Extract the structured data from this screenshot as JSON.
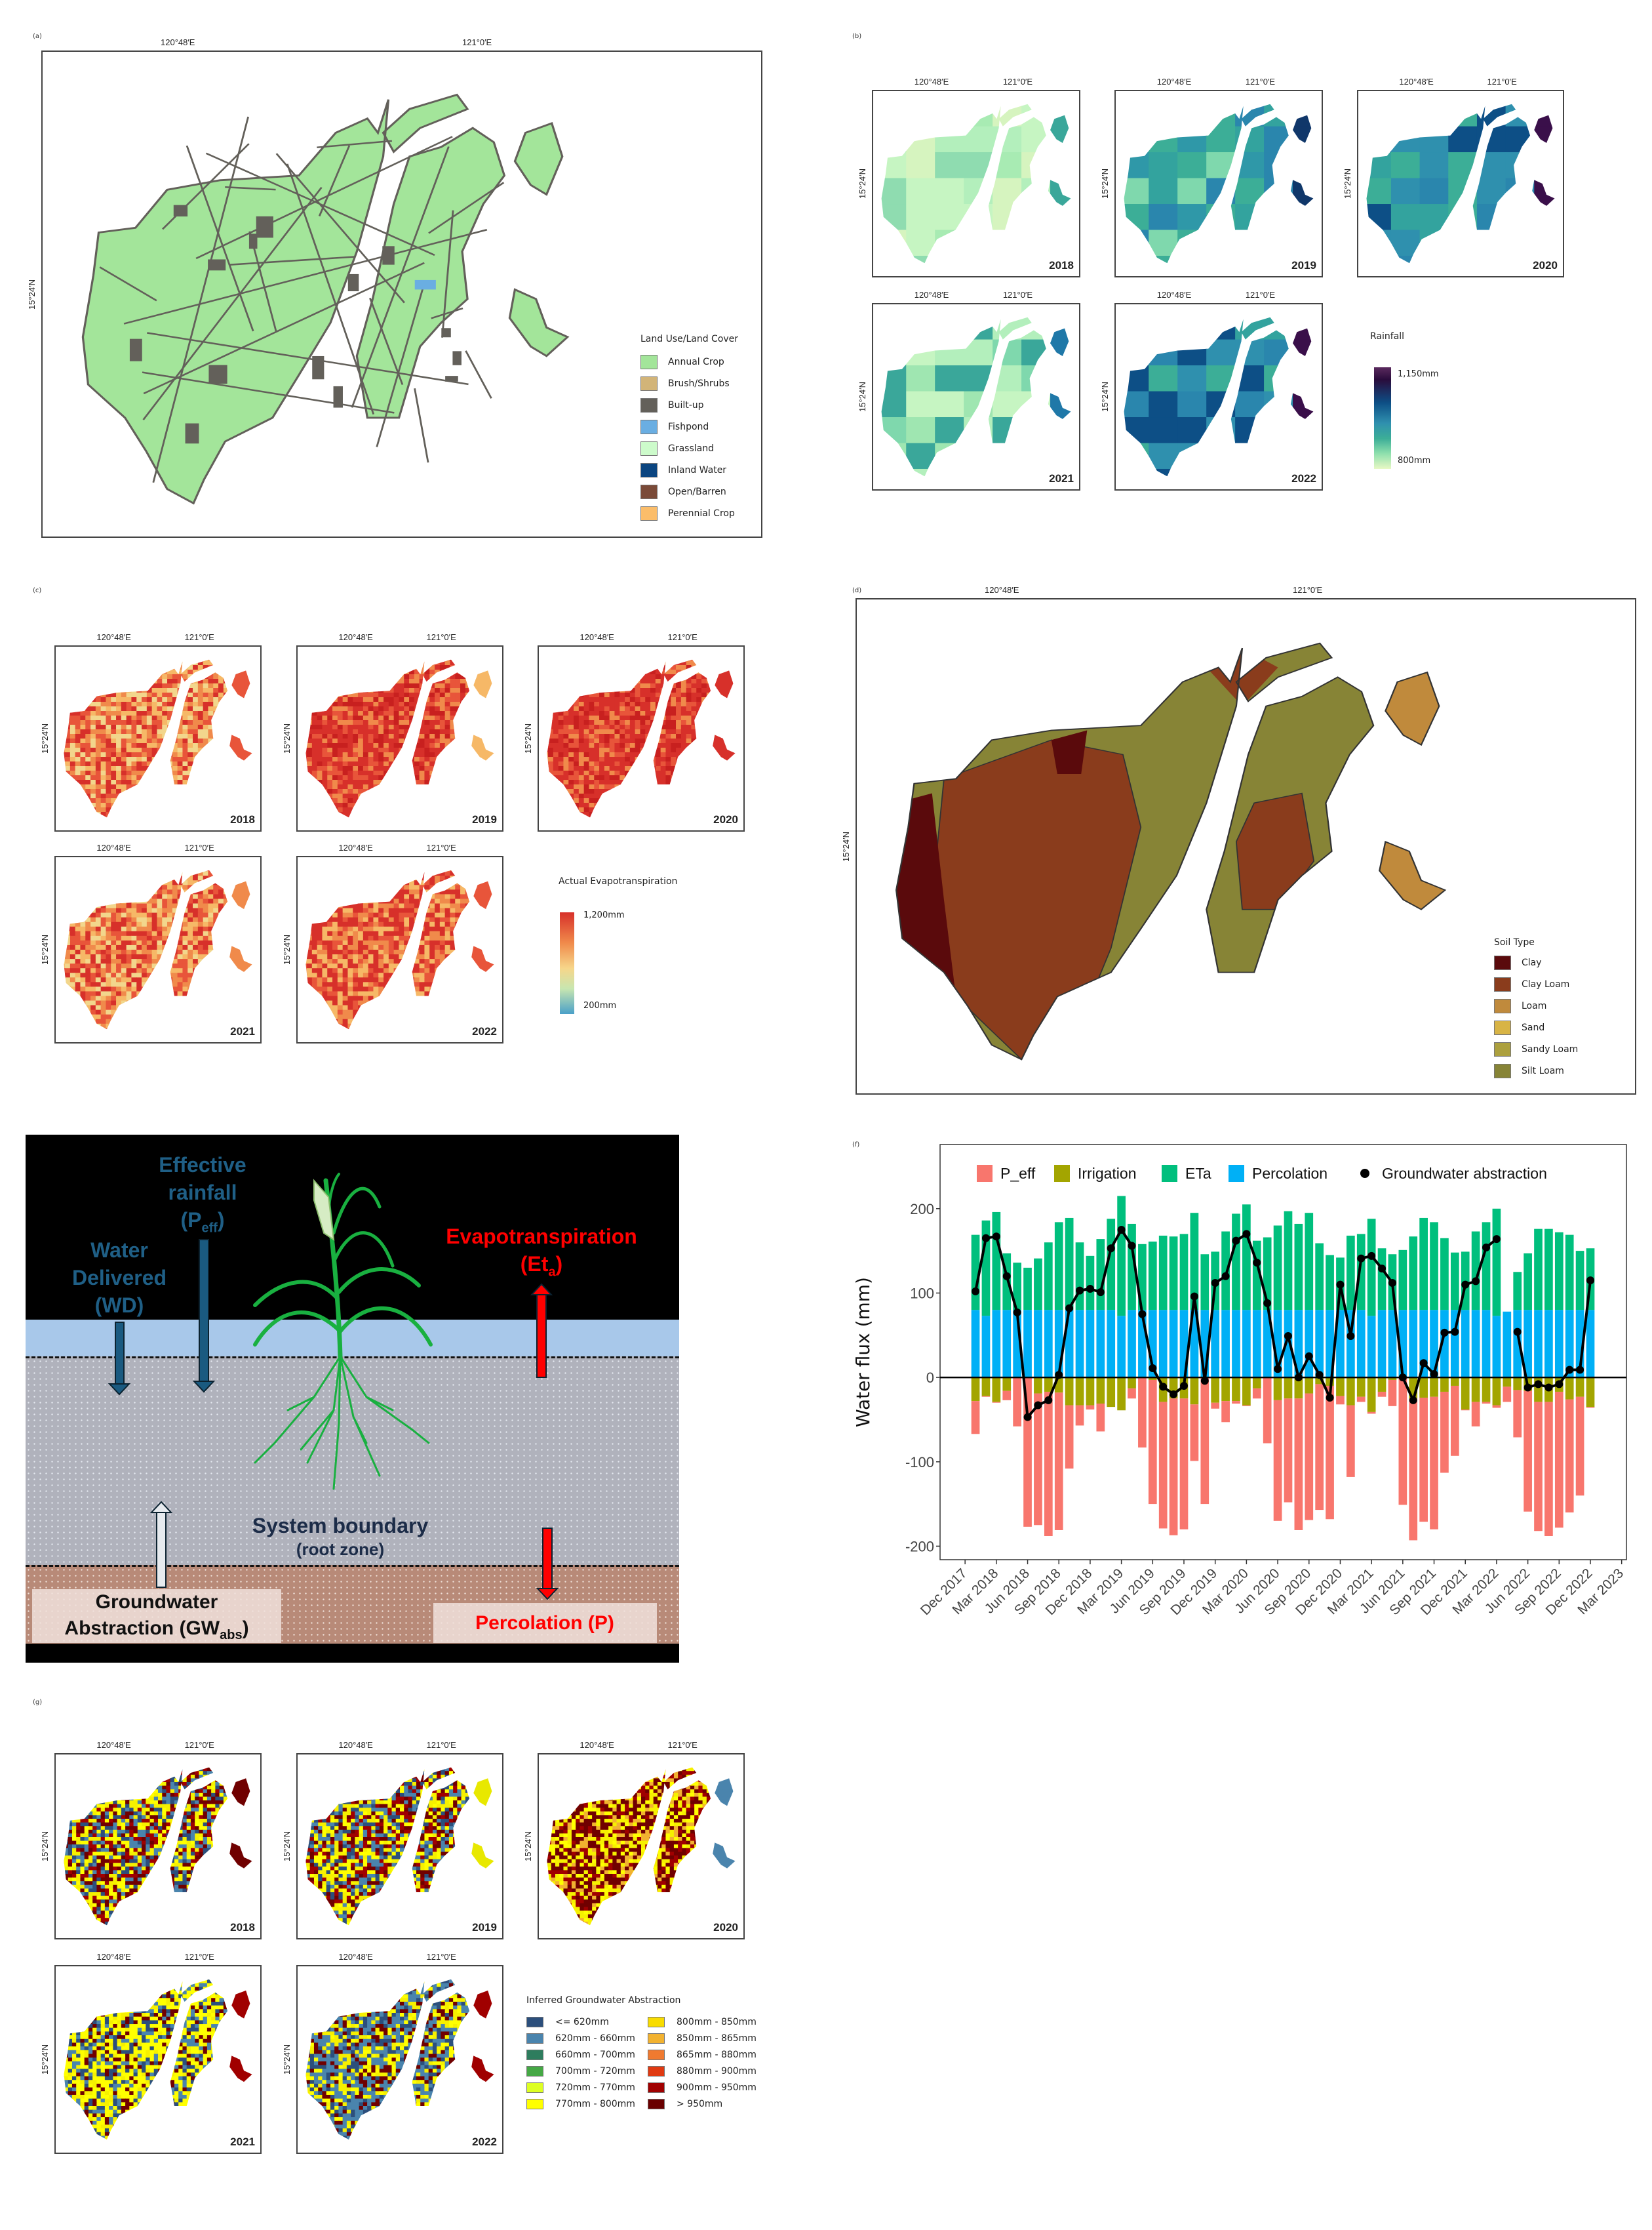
{
  "panel_a": {
    "label": "(a)",
    "lon_labels": [
      "120°48′E",
      "121°0′E"
    ],
    "lat_label": "15°24′N",
    "legend_title": "Land Use/Land Cover",
    "legend": [
      {
        "label": "Annual Crop",
        "color": "#a3e59a"
      },
      {
        "label": "Brush/Shrubs",
        "color": "#d2b478"
      },
      {
        "label": "Built-up",
        "color": "#63605a"
      },
      {
        "label": "Fishpond",
        "color": "#6aaee2"
      },
      {
        "label": "Grassland",
        "color": "#cdfbcb"
      },
      {
        "label": "Inland Water",
        "color": "#0b4580"
      },
      {
        "label": "Open/Barren",
        "color": "#7a4a38"
      },
      {
        "label": "Perennial Crop",
        "color": "#fbbd6a"
      }
    ]
  },
  "panel_b": {
    "label": "(b)",
    "lon_labels": [
      "120°48′E",
      "121°0′E"
    ],
    "lat_label": "15°24′N",
    "maps": [
      {
        "year": "2018",
        "palette": [
          "#c6f5c2",
          "#b3efbc",
          "#a8ebb3",
          "#d6f4bf",
          "#8fdcb0",
          "#3aa79a"
        ]
      },
      {
        "year": "2019",
        "palette": [
          "#33a39e",
          "#2f98a8",
          "#3cae97",
          "#7fd8ad",
          "#2a86ad",
          "#10376a"
        ]
      },
      {
        "year": "2020",
        "palette": [
          "#2f90ae",
          "#2a86ad",
          "#33a39e",
          "#3cae97",
          "#0d4f86",
          "#3a0f4a"
        ]
      },
      {
        "year": "2021",
        "palette": [
          "#b3efbc",
          "#9fe6b1",
          "#7fd8ad",
          "#3aa79a",
          "#c6f5c2",
          "#1f78a8"
        ]
      },
      {
        "year": "2022",
        "palette": [
          "#33a39e",
          "#2f90ae",
          "#2a86ad",
          "#3cae97",
          "#0d4f86",
          "#3a0f4a"
        ]
      }
    ],
    "legend_title": "Rainfall",
    "legend_max": "1,150mm",
    "legend_min": "800mm"
  },
  "panel_c": {
    "label": "(c)",
    "lon_labels": [
      "120°48′E",
      "121°0′E"
    ],
    "lat_label": "15°24′N",
    "maps": [
      {
        "year": "2018",
        "palette": [
          "#e8553a",
          "#f08a4b",
          "#d7302a",
          "#f6b867",
          "#f2d68c",
          "#e8553a"
        ]
      },
      {
        "year": "2019",
        "palette": [
          "#d7302a",
          "#d7302a",
          "#e8553a",
          "#f08a4b",
          "#c8201f",
          "#f6b867"
        ]
      },
      {
        "year": "2020",
        "palette": [
          "#d7302a",
          "#c8201f",
          "#d7302a",
          "#e8553a",
          "#f08a4b",
          "#d7302a"
        ]
      },
      {
        "year": "2021",
        "palette": [
          "#f08a4b",
          "#e8553a",
          "#f6b867",
          "#d7302a",
          "#f2d68c",
          "#f08a4b"
        ]
      },
      {
        "year": "2022",
        "palette": [
          "#e8553a",
          "#d7302a",
          "#f08a4b",
          "#f6b867",
          "#d7302a",
          "#e8553a"
        ]
      }
    ],
    "legend_title": "Actual Evapotranspiration",
    "legend_max": "1,200mm",
    "legend_min": "200mm"
  },
  "panel_d": {
    "label": "(d)",
    "lon_labels": [
      "120°48′E",
      "121°0′E"
    ],
    "lat_label": "15°24′N",
    "legend_title": "Soil Type",
    "legend": [
      {
        "label": "Clay",
        "color": "#5a0a0c"
      },
      {
        "label": "Clay Loam",
        "color": "#8a3c1c"
      },
      {
        "label": "Loam",
        "color": "#c08a3c"
      },
      {
        "label": "Sand",
        "color": "#d8b445"
      },
      {
        "label": "Sandy Loam",
        "color": "#aca03e"
      },
      {
        "label": "Silt Loam",
        "color": "#878436"
      }
    ]
  },
  "panel_e": {
    "eff_1": "Effective",
    "eff_2": "rainfall",
    "eff_3a": "(P",
    "eff_3sub": "eff",
    "eff_3b": ")",
    "wd_1": "Water",
    "wd_2": "Delivered",
    "wd_3": "(WD)",
    "et_1": "Evapotranspiration",
    "et_2a": "(Et",
    "et_2sub": "a",
    "et_2b": ")",
    "sys_1": "System boundary",
    "sys_2": "(root zone)",
    "gw_1": "Groundwater",
    "gw_2a": "Abstraction (GW",
    "gw_2sub": "abs",
    "gw_2b": ")",
    "perc": "Percolation (P)"
  },
  "panel_f": {
    "label": "(f)"
  },
  "chart_data": {
    "type": "bar",
    "stacked": true,
    "ylabel": "Water flux (mm)",
    "xlabel": "",
    "ylim": [
      -216,
      276
    ],
    "yticks": [
      200,
      100,
      0,
      -100,
      -200
    ],
    "xticks": [
      "Dec 2017",
      "Mar 2018",
      "Jun 2018",
      "Sep 2018",
      "Dec 2018",
      "Mar 2019",
      "Jun 2019",
      "Sep 2019",
      "Dec 2019",
      "Mar 2020",
      "Jun 2020",
      "Sep 2020",
      "Dec 2020",
      "Mar 2021",
      "Jun 2021",
      "Sep 2021",
      "Dec 2021",
      "Mar 2022",
      "Jun 2022",
      "Sep 2022",
      "Dec 2022",
      "Mar 2023"
    ],
    "legend_position": "top",
    "categories": [
      "Jan 2018",
      "Feb 2018",
      "Mar 2018",
      "Apr 2018",
      "May 2018",
      "Jun 2018",
      "Jul 2018",
      "Aug 2018",
      "Sep 2018",
      "Oct 2018",
      "Nov 2018",
      "Dec 2018",
      "Jan 2019",
      "Feb 2019",
      "Mar 2019",
      "Apr 2019",
      "May 2019",
      "Jun 2019",
      "Jul 2019",
      "Aug 2019",
      "Sep 2019",
      "Oct 2019",
      "Nov 2019",
      "Dec 2019",
      "Jan 2020",
      "Feb 2020",
      "Mar 2020",
      "Apr 2020",
      "May 2020",
      "Jun 2020",
      "Jul 2020",
      "Aug 2020",
      "Sep 2020",
      "Oct 2020",
      "Nov 2020",
      "Dec 2020",
      "Jan 2021",
      "Feb 2021",
      "Mar 2021",
      "Apr 2021",
      "May 2021",
      "Jun 2021",
      "Jul 2021",
      "Aug 2021",
      "Sep 2021",
      "Oct 2021",
      "Nov 2021",
      "Dec 2021",
      "Jan 2022",
      "Feb 2022",
      "Mar 2022",
      "Apr 2022",
      "May 2022",
      "Jun 2022",
      "Jul 2022",
      "Aug 2022",
      "Sep 2022",
      "Oct 2022",
      "Nov 2022",
      "Dec 2022"
    ],
    "series": [
      {
        "name": "P_eff",
        "color": "#f8766d",
        "values": [
          -39,
          -1,
          -1,
          -11,
          -58,
          -177,
          -156,
          -171,
          -163,
          -75,
          -24,
          -5,
          -33,
          0,
          0,
          -12,
          -83,
          -147,
          -150,
          -162,
          -155,
          -67,
          -150,
          -7,
          -25,
          -3,
          -1,
          -12,
          -78,
          -143,
          -123,
          -156,
          -150,
          -149,
          -158,
          -10,
          -85,
          -6,
          -2,
          -6,
          -31,
          -151,
          -168,
          -147,
          -157,
          -96,
          -83,
          -1,
          -29,
          -2,
          -3,
          -18,
          -56,
          -143,
          -153,
          -159,
          -161,
          -134,
          -117,
          -1
        ]
      },
      {
        "name": "Irrigation",
        "color": "#a3a500",
        "values": [
          -28,
          -22,
          -29,
          -16,
          0,
          0,
          -19,
          -17,
          -18,
          -33,
          -33,
          -33,
          -31,
          -35,
          -39,
          -13,
          0,
          -3,
          -29,
          -25,
          -25,
          -32,
          0,
          -30,
          -28,
          -28,
          -33,
          -13,
          0,
          -27,
          -25,
          -25,
          -19,
          -8,
          -10,
          -22,
          -33,
          -23,
          -41,
          -17,
          -3,
          0,
          -25,
          -24,
          -23,
          -17,
          -10,
          -38,
          -29,
          -29,
          -33,
          -11,
          -15,
          -16,
          -29,
          -29,
          -17,
          -26,
          -23,
          -35
        ]
      },
      {
        "name": "ETa",
        "color": "#00bf7d",
        "values": [
          89,
          113,
          116,
          67,
          56,
          50,
          61,
          80,
          104,
          109,
          80,
          64,
          84,
          108,
          142,
          102,
          78,
          81,
          88,
          87,
          90,
          115,
          66,
          69,
          93,
          114,
          125,
          82,
          86,
          100,
          117,
          102,
          115,
          79,
          65,
          62,
          88,
          90,
          115,
          73,
          66,
          71,
          87,
          109,
          104,
          85,
          68,
          69,
          93,
          104,
          127,
          0,
          45,
          67,
          96,
          96,
          92,
          89,
          70,
          73
        ]
      },
      {
        "name": "Percolation",
        "color": "#00b0f6",
        "values": [
          80,
          73,
          80,
          80,
          80,
          80,
          80,
          80,
          80,
          80,
          80,
          80,
          80,
          80,
          73,
          80,
          80,
          80,
          80,
          80,
          80,
          80,
          80,
          80,
          80,
          80,
          80,
          80,
          80,
          80,
          80,
          80,
          80,
          80,
          80,
          80,
          80,
          80,
          73,
          80,
          80,
          80,
          80,
          80,
          80,
          80,
          80,
          80,
          80,
          80,
          73,
          78,
          80,
          80,
          80,
          80,
          80,
          80,
          80,
          80
        ]
      },
      {
        "name": "Groundwater abstraction",
        "type": "line",
        "color": "#000000",
        "values": [
          102,
          165,
          167,
          120,
          77,
          -47,
          -33,
          -27,
          3,
          82,
          103,
          105,
          101,
          153,
          175,
          156,
          75,
          11,
          -11,
          -20,
          -10,
          96,
          -4,
          112,
          120,
          162,
          170,
          136,
          88,
          10,
          49,
          0,
          25,
          3,
          -24,
          110,
          49,
          141,
          144,
          129,
          112,
          0,
          -27,
          17,
          4,
          53,
          54,
          110,
          114,
          154,
          164,
          null,
          54,
          -12,
          -8,
          -12,
          -8,
          9,
          9,
          115
        ]
      }
    ]
  },
  "panel_g": {
    "label": "(g)",
    "lon_labels": [
      "120°48′E",
      "121°0′E"
    ],
    "lat_label": "15°24′N",
    "maps": [
      {
        "year": "2018",
        "palette": [
          "#700000",
          "#a00000",
          "#f6f000",
          "#ffff00",
          "#2c4f7c",
          "#4a84ad",
          "#700000"
        ]
      },
      {
        "year": "2019",
        "palette": [
          "#700000",
          "#a00000",
          "#f6f000",
          "#ffff00",
          "#4a84ad",
          "#2c4f7c",
          "#e8e800"
        ]
      },
      {
        "year": "2020",
        "palette": [
          "#700000",
          "#a00000",
          "#f6f000",
          "#ffff00",
          "#f2b230",
          "#700000",
          "#4a84ad"
        ]
      },
      {
        "year": "2021",
        "palette": [
          "#ffff00",
          "#f6f000",
          "#700000",
          "#4a84ad",
          "#2c4f7c",
          "#ffff00",
          "#a00000"
        ]
      },
      {
        "year": "2022",
        "palette": [
          "#ffff00",
          "#4a84ad",
          "#2c4f7c",
          "#700000",
          "#f6f000",
          "#4a84ad",
          "#a00000"
        ]
      }
    ],
    "legend_title": "Inferred Groundwater Abstraction",
    "legend": [
      {
        "label": "<= 620mm",
        "color": "#2c4f7c"
      },
      {
        "label": "620mm - 660mm",
        "color": "#4a84ad"
      },
      {
        "label": "660mm - 700mm",
        "color": "#2e7d5e"
      },
      {
        "label": "700mm - 720mm",
        "color": "#45a845"
      },
      {
        "label": "720mm - 770mm",
        "color": "#ddff22"
      },
      {
        "label": "770mm - 800mm",
        "color": "#ffff00"
      },
      {
        "label": "800mm - 850mm",
        "color": "#f8dc00"
      },
      {
        "label": "850mm - 865mm",
        "color": "#f2b230"
      },
      {
        "label": "865mm - 880mm",
        "color": "#f07a30"
      },
      {
        "label": "880mm - 900mm",
        "color": "#e03a12"
      },
      {
        "label": "900mm - 950mm",
        "color": "#a00000"
      },
      {
        "label": "> 950mm",
        "color": "#6a0000"
      }
    ]
  }
}
